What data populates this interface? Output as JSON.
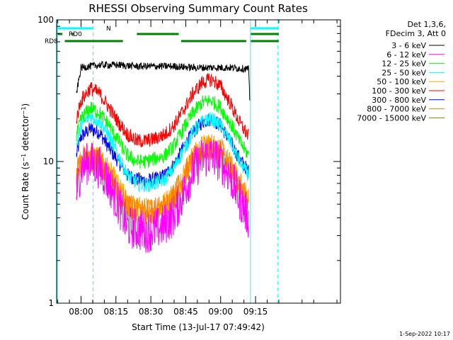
{
  "chart_data": {
    "type": "line",
    "title": "RHESSI Observing Summary Count Rates",
    "xlabel": "Start Time (13-Jul-17 07:49:42)",
    "ylabel": "Count Rate (s⁻¹ detector⁻¹)",
    "ylabel_parts": {
      "base": "Count Rate (s",
      "sup1": "−1",
      "mid": " detector",
      "sup2": "−1",
      "end": ")"
    },
    "y_scale": "log",
    "ylim": [
      1,
      100
    ],
    "y_tick_labels": [
      "1",
      "10",
      "100"
    ],
    "xlim_minutes": [
      -10.5,
      111.5
    ],
    "x_ticks": [
      {
        "label": "08:00",
        "minute": 0
      },
      {
        "label": "08:15",
        "minute": 15
      },
      {
        "label": "08:30",
        "minute": 30
      },
      {
        "label": "08:45",
        "minute": 45
      },
      {
        "label": "09:00",
        "minute": 60
      },
      {
        "label": "09:15",
        "minute": 75
      }
    ],
    "legend_header": [
      "Det 1,3,6,",
      "FDecim 3, Att 0"
    ],
    "legend_position": "right",
    "series": [
      {
        "name": "3 - 6 keV",
        "color": "#000000",
        "x": [
          -2,
          0,
          8,
          16,
          24,
          32,
          40,
          48,
          56,
          64,
          72,
          72.5
        ],
        "y": [
          30,
          46,
          48,
          48,
          47,
          47,
          47,
          46,
          46,
          46,
          45,
          28
        ]
      },
      {
        "name": "6 - 12 keV",
        "color": "#ff00ff",
        "x": [
          -2,
          0,
          4,
          8,
          12,
          16,
          20,
          24,
          28,
          32,
          36,
          40,
          44,
          48,
          52,
          56,
          60,
          64,
          68,
          72
        ],
        "y": [
          6,
          9,
          10,
          9,
          7,
          5,
          3.5,
          3.3,
          3.2,
          3.3,
          3.6,
          4.2,
          6,
          8.5,
          10.5,
          11,
          10,
          8,
          5.5,
          4
        ]
      },
      {
        "name": "12 - 25 keV",
        "color": "#00ff00",
        "x": [
          -2,
          0,
          4,
          8,
          12,
          16,
          20,
          24,
          28,
          32,
          36,
          40,
          44,
          48,
          52,
          56,
          60,
          64,
          68,
          72
        ],
        "y": [
          15,
          20,
          24,
          22,
          18,
          14,
          11,
          10,
          10,
          10.5,
          11,
          13,
          17,
          22,
          26,
          27,
          24,
          19,
          14,
          11
        ]
      },
      {
        "name": "25 - 50 keV",
        "color": "#00ffff",
        "x": [
          -2,
          0,
          4,
          8,
          12,
          16,
          20,
          24,
          28,
          32,
          36,
          40,
          44,
          48,
          52,
          56,
          60,
          64,
          68,
          72
        ],
        "y": [
          13,
          18,
          21,
          19,
          15,
          11,
          8,
          7,
          6.8,
          7,
          7.5,
          9,
          12,
          16,
          19,
          20,
          18,
          14,
          10,
          8
        ]
      },
      {
        "name": "50 - 100 keV",
        "color": "#ffa500",
        "x": [
          -2,
          0,
          4,
          8,
          12,
          16,
          20,
          24,
          28,
          32,
          36,
          40,
          44,
          48,
          52,
          56,
          60,
          64,
          68,
          72
        ],
        "y": [
          8,
          10.5,
          11,
          10.5,
          8.5,
          6.5,
          5,
          4.6,
          4.5,
          4.6,
          5,
          6,
          8,
          10.5,
          12.5,
          13,
          12,
          9.5,
          7,
          5.5
        ]
      },
      {
        "name": "100 - 300 keV",
        "color": "#ff0000",
        "x": [
          -2,
          0,
          4,
          8,
          12,
          16,
          20,
          24,
          28,
          32,
          36,
          40,
          44,
          48,
          52,
          56,
          60,
          64,
          68,
          72
        ],
        "y": [
          20,
          27,
          33,
          30,
          24,
          19,
          15.5,
          14,
          14,
          14.5,
          15.5,
          18,
          23,
          30,
          36,
          38,
          34,
          26,
          19,
          15
        ]
      },
      {
        "name": "300 - 800 keV",
        "color": "#0000ff",
        "x": [
          -2,
          0,
          4,
          8,
          12,
          16,
          20,
          24,
          28,
          32,
          36,
          40,
          44,
          48,
          52,
          56,
          60,
          64,
          68,
          72
        ],
        "y": [
          11,
          15,
          17,
          16,
          12.5,
          10,
          8,
          7.5,
          7.3,
          7.5,
          8,
          9.5,
          12.5,
          16,
          19,
          20,
          18,
          14,
          10.5,
          8.5
        ]
      },
      {
        "name": "800 - 7000 keV",
        "color": "#ff7f00",
        "x": [
          -2,
          0,
          4,
          8,
          12,
          16,
          20,
          24,
          28,
          32,
          36,
          40,
          44,
          48,
          52,
          56,
          60,
          64,
          68,
          72
        ],
        "y": [
          8.5,
          10,
          10.5,
          10,
          8,
          6,
          4.8,
          4.5,
          4.4,
          4.5,
          4.8,
          5.8,
          7.8,
          10,
          12,
          12.5,
          11.5,
          9,
          6.8,
          5
        ]
      },
      {
        "name": "7000 - 15000 keV",
        "color": "#808000",
        "x": [],
        "y": []
      }
    ],
    "flags": [
      {
        "label": "N",
        "color": "#00ffff",
        "intervals": [
          [
            -10,
            5
          ],
          [
            73,
            85
          ]
        ]
      },
      {
        "label": "RD0",
        "color": "#008000",
        "intervals": [
          [
            -10,
            -8
          ],
          [
            -4,
            -3
          ],
          [
            24,
            42
          ],
          [
            73,
            85
          ]
        ]
      },
      {
        "label": "RD8",
        "color": "#008000",
        "intervals": [
          [
            -7,
            18
          ],
          [
            43,
            71
          ],
          [
            73,
            85
          ]
        ]
      }
    ],
    "vlines_solid_minutes": [
      -10.2,
      72.8
    ],
    "vlines_dashed_minutes": [
      5.2,
      84.5
    ],
    "vline_color": "#00ffff",
    "footer_date": "1-Sep-2022 10:17"
  }
}
